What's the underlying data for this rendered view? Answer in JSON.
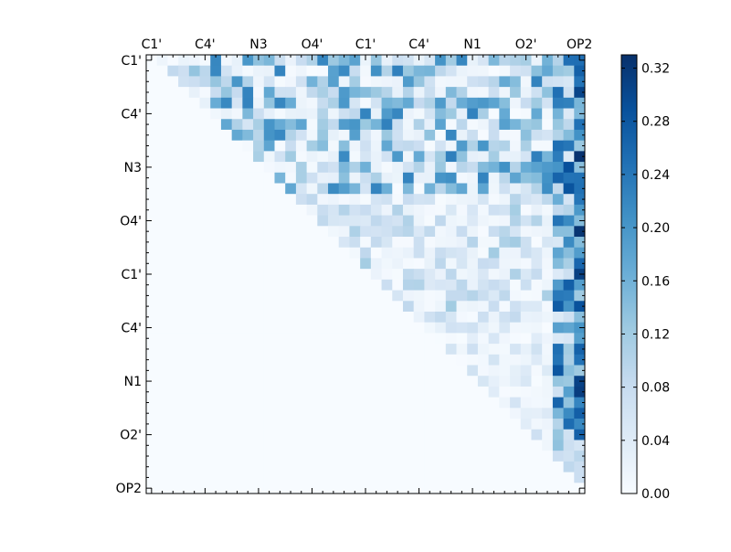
{
  "chart_data": {
    "type": "heatmap",
    "title": "",
    "xlabel": "",
    "ylabel": "",
    "size": 41,
    "x_tick_labels": [
      "C1'",
      "C4'",
      "N3",
      "O4'",
      "C1'",
      "C4'",
      "N1",
      "O2'",
      "OP2"
    ],
    "y_tick_labels": [
      "C1'",
      "C4'",
      "N3",
      "O4'",
      "C1'",
      "C4'",
      "N1",
      "O2'",
      "OP2"
    ],
    "label_indices": [
      0,
      5,
      10,
      15,
      20,
      25,
      30,
      35,
      40
    ],
    "colormap": "Blues",
    "colorbar": {
      "min": 0.0,
      "max": 0.33,
      "ticks": [
        "0.00",
        "0.04",
        "0.08",
        "0.12",
        "0.16",
        "0.20",
        "0.24",
        "0.28",
        "0.32"
      ]
    },
    "grid": false,
    "approx_values": {
      "upper_rows_range": [
        0.0,
        0.24
      ],
      "last_column_peak": 0.33,
      "lower_triangle": 0.0
    }
  }
}
